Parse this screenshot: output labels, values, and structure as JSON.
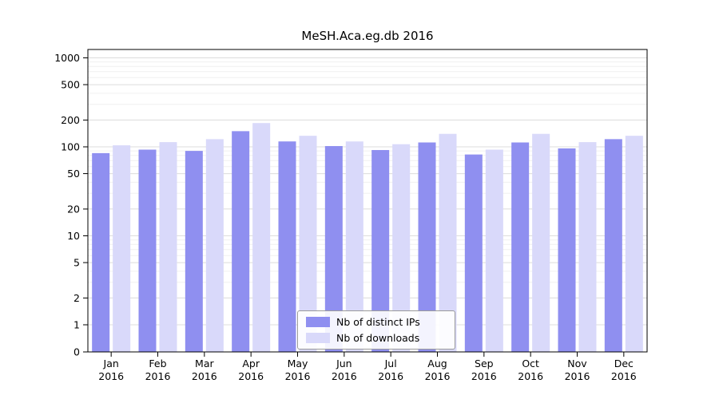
{
  "chart_data": {
    "type": "bar",
    "title": "MeSH.Aca.eg.db 2016",
    "categories": [
      "Jan",
      "Feb",
      "Mar",
      "Apr",
      "May",
      "Jun",
      "Jul",
      "Aug",
      "Sep",
      "Oct",
      "Nov",
      "Dec"
    ],
    "year": "2016",
    "series": [
      {
        "name": "Nb of distinct IPs",
        "color": "#8f8ff0",
        "values": [
          85,
          93,
          90,
          150,
          115,
          102,
          92,
          112,
          82,
          112,
          96,
          122
        ]
      },
      {
        "name": "Nb of downloads",
        "color": "#d9d9fa",
        "values": [
          104,
          113,
          122,
          185,
          133,
          115,
          107,
          140,
          93,
          140,
          113,
          133
        ]
      }
    ],
    "yticks": [
      0,
      1,
      2,
      5,
      10,
      20,
      50,
      100,
      200,
      500,
      1000
    ],
    "yscale": "log",
    "grid": true,
    "legend_position": "bottom-center",
    "background": "#ffffff",
    "axis_color": "#000000",
    "major_grid_color": "#dcdcdc",
    "minor_grid_color": "#f0f0f0"
  }
}
